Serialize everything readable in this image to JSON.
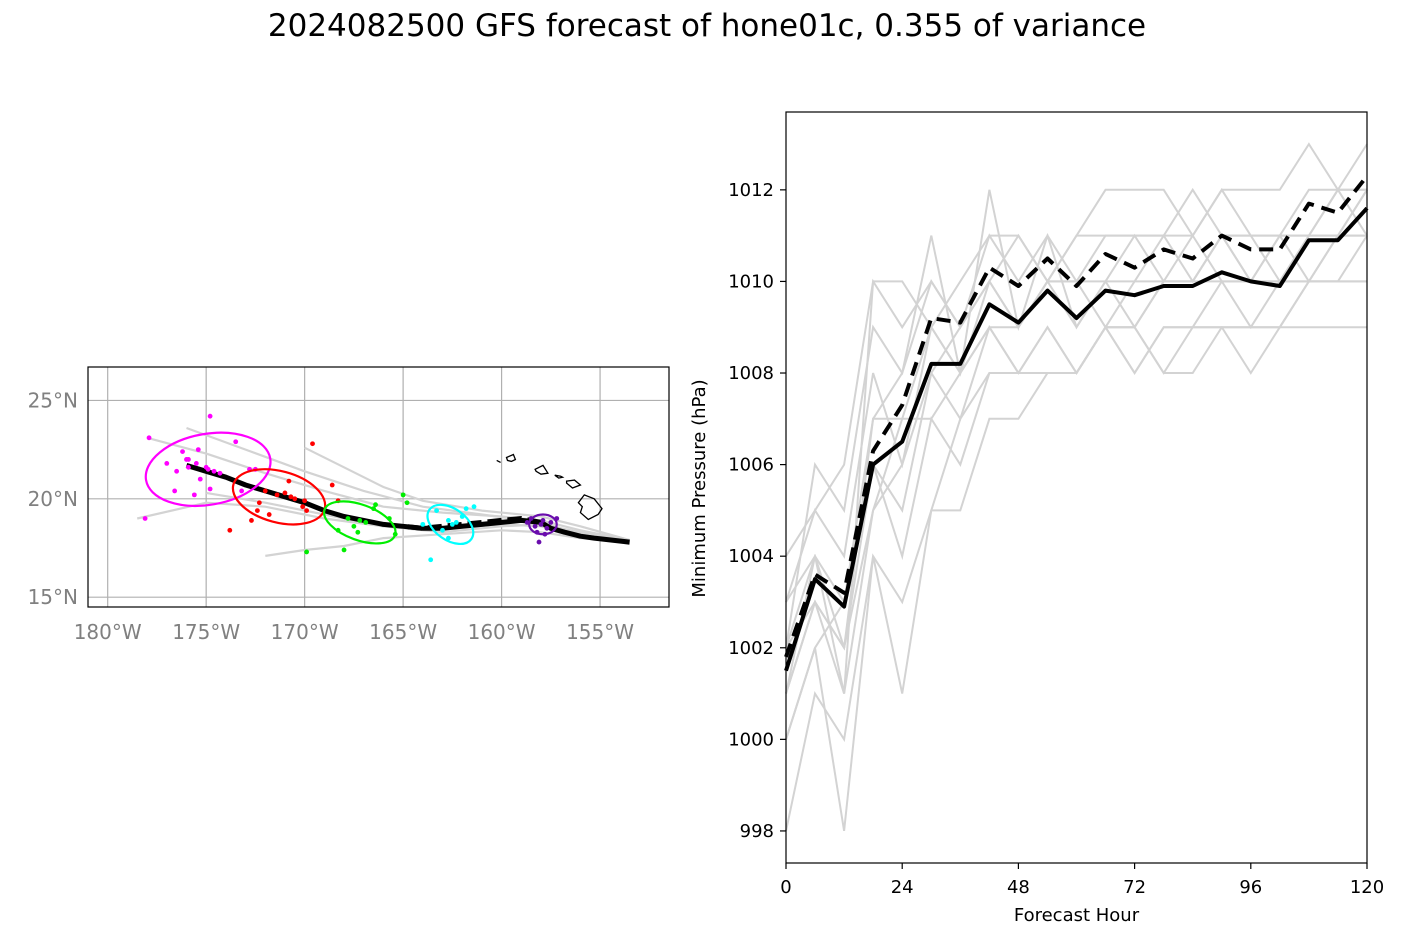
{
  "title": "2024082500 GFS forecast of hone01c, 0.355 of variance",
  "colors": {
    "ensemble": "#d3d3d3",
    "mean": "#000000",
    "t24": "#ff00ff",
    "t48": "#ff0000",
    "t72": "#00ee00",
    "t96": "#00ffff",
    "t120": "#6a0dad"
  },
  "chart_data": [
    {
      "type": "scatter",
      "name": "track-map",
      "xlim": [
        -181,
        -151.5
      ],
      "ylim": [
        14.5,
        26.7
      ],
      "xticks": [
        -180,
        -175,
        -170,
        -165,
        -160,
        -155
      ],
      "xtick_labels": [
        "180°W",
        "175°W",
        "170°W",
        "165°W",
        "160°W",
        "155°W"
      ],
      "yticks": [
        15,
        20,
        25
      ],
      "ytick_labels": [
        "15°N",
        "20°N",
        "25°N"
      ],
      "grid": true,
      "mean_track": {
        "lon": [
          -153.5,
          -154.4,
          -155.3,
          -156.0,
          -156.8,
          -157.5,
          -158.0,
          -159.0,
          -160.0,
          -161.0,
          -162.0,
          -163.0,
          -164.0,
          -165.0,
          -166.0,
          -167.0,
          -168.0,
          -169.0,
          -170.0,
          -171.0,
          -172.0,
          -173.0,
          -174.0,
          -175.0,
          -176.0
        ],
        "lat": [
          17.8,
          17.9,
          18.0,
          18.1,
          18.3,
          18.5,
          18.8,
          18.9,
          18.8,
          18.7,
          18.6,
          18.5,
          18.5,
          18.6,
          18.7,
          18.9,
          19.1,
          19.4,
          19.8,
          20.1,
          20.4,
          20.7,
          21.1,
          21.4,
          21.7
        ]
      },
      "dashed_track": {
        "lon": [
          -158.0,
          -159.0,
          -160.0,
          -161.0,
          -162.0,
          -163.0,
          -164.0,
          -165.0
        ],
        "lat": [
          18.8,
          19.0,
          18.9,
          18.8,
          18.7,
          18.6,
          18.5,
          18.6
        ]
      },
      "ensemble_tracks": [
        {
          "lon": [
            -153.5,
            -156,
            -158,
            -160,
            -163,
            -166,
            -169,
            -172,
            -175,
            -178.5
          ],
          "lat": [
            17.8,
            18.1,
            18.6,
            18.7,
            18.5,
            18.6,
            19.0,
            19.6,
            19.8,
            19.0
          ]
        },
        {
          "lon": [
            -153.5,
            -156,
            -158,
            -160,
            -163,
            -166,
            -169,
            -172,
            -175,
            -178
          ],
          "lat": [
            17.9,
            18.4,
            18.9,
            19.1,
            19.3,
            19.6,
            20.4,
            21.3,
            22.3,
            23.1
          ]
        },
        {
          "lon": [
            -153.5,
            -156,
            -158,
            -160,
            -163,
            -166,
            -168,
            -170,
            -172
          ],
          "lat": [
            17.8,
            18.0,
            18.3,
            18.4,
            18.2,
            18.0,
            17.6,
            17.4,
            17.1
          ]
        },
        {
          "lon": [
            -153.5,
            -156,
            -158,
            -161,
            -164,
            -167,
            -170,
            -173,
            -176
          ],
          "lat": [
            17.7,
            18.2,
            18.8,
            19.2,
            19.6,
            20.4,
            21.4,
            22.5,
            23.6
          ]
        },
        {
          "lon": [
            -153.5,
            -156,
            -158,
            -161,
            -164,
            -166,
            -168,
            -170
          ],
          "lat": [
            17.9,
            18.6,
            19.1,
            19.4,
            19.9,
            20.6,
            21.6,
            22.6
          ]
        },
        {
          "lon": [
            -153.5,
            -156,
            -158,
            -160,
            -163,
            -166,
            -169,
            -172,
            -175
          ],
          "lat": [
            17.9,
            18.3,
            18.7,
            18.6,
            18.3,
            18.6,
            19.2,
            19.8,
            20.3
          ]
        }
      ],
      "forecast_points": [
        {
          "hour": 24,
          "color_key": "t24",
          "lon": [
            -177.9,
            -176.2,
            -175.9,
            -175.5,
            -175.0,
            -174.9,
            -174.6,
            -174.3,
            -175.9,
            -176.5,
            -175.3,
            -174.8,
            -173.5,
            -172.8,
            -176.6,
            -177.0,
            -174.8,
            -175.4,
            -176.0,
            -175.6,
            -172.5,
            -173.2,
            -178.1
          ],
          "lat": [
            23.1,
            22.4,
            22.0,
            21.8,
            21.6,
            21.5,
            21.4,
            21.3,
            21.6,
            21.4,
            21.0,
            20.5,
            22.9,
            21.5,
            20.4,
            21.8,
            24.2,
            22.5,
            22.0,
            20.2,
            21.5,
            20.4,
            19.0
          ]
        },
        {
          "hour": 48,
          "color_key": "t48",
          "lon": [
            -171.0,
            -170.7,
            -170.5,
            -171.4,
            -172.0,
            -172.3,
            -171.8,
            -170.1,
            -169.9,
            -169.6,
            -168.6,
            -168.3,
            -172.7,
            -173.8,
            -170.0,
            -170.8,
            -172.4
          ],
          "lat": [
            20.3,
            20.1,
            20.0,
            20.2,
            20.4,
            19.8,
            19.2,
            19.6,
            19.4,
            22.8,
            20.7,
            19.9,
            18.9,
            18.4,
            19.9,
            20.9,
            19.4
          ]
        },
        {
          "hour": 72,
          "color_key": "t72",
          "lon": [
            -167.8,
            -167.2,
            -166.9,
            -167.5,
            -166.5,
            -165.7,
            -165.0,
            -164.8,
            -168.3,
            -168.0,
            -167.3,
            -169.9,
            -166.4,
            -165.4
          ],
          "lat": [
            19.0,
            18.9,
            18.8,
            18.6,
            19.5,
            19.0,
            20.2,
            19.8,
            18.4,
            17.4,
            18.3,
            17.3,
            19.7,
            18.2
          ]
        },
        {
          "hour": 96,
          "color_key": "t96",
          "lon": [
            -162.7,
            -162.5,
            -162.3,
            -162.0,
            -161.8,
            -163.0,
            -163.3,
            -161.4,
            -162.7,
            -164.0,
            -163.6
          ],
          "lat": [
            18.9,
            18.7,
            18.8,
            19.1,
            19.5,
            18.4,
            19.4,
            19.6,
            18.0,
            18.7,
            16.9
          ]
        },
        {
          "hour": 120,
          "color_key": "t120",
          "lon": [
            -158.0,
            -157.9,
            -157.7,
            -158.3,
            -158.5,
            -157.5,
            -158.2,
            -157.2,
            -158.7,
            -157.8,
            -158.1
          ],
          "lat": [
            18.7,
            18.9,
            18.5,
            18.6,
            19.0,
            18.8,
            18.3,
            19.0,
            18.8,
            18.2,
            17.8
          ]
        }
      ],
      "ellipses": [
        {
          "hour": 24,
          "color_key": "t24",
          "center_lon": -174.9,
          "center_lat": 21.5,
          "semi_major_deg": 3.2,
          "semi_minor_deg": 1.8,
          "angle_deg": -10
        },
        {
          "hour": 48,
          "color_key": "t48",
          "center_lon": -171.3,
          "center_lat": 20.1,
          "semi_major_deg": 2.4,
          "semi_minor_deg": 1.3,
          "angle_deg": 15
        },
        {
          "hour": 72,
          "color_key": "t72",
          "center_lon": -167.2,
          "center_lat": 18.8,
          "semi_major_deg": 1.9,
          "semi_minor_deg": 0.9,
          "angle_deg": 20
        },
        {
          "hour": 96,
          "color_key": "t96",
          "center_lon": -162.6,
          "center_lat": 18.7,
          "semi_major_deg": 1.3,
          "semi_minor_deg": 0.8,
          "angle_deg": 35
        },
        {
          "hour": 120,
          "color_key": "t120",
          "center_lon": -157.9,
          "center_lat": 18.7,
          "semi_major_deg": 0.7,
          "semi_minor_deg": 0.5,
          "angle_deg": 0
        }
      ],
      "islands": [
        {
          "lon": [
            -156.1,
            -155.8,
            -155.3,
            -154.9,
            -155.1,
            -155.6,
            -156.0,
            -155.9
          ],
          "lat": [
            19.8,
            20.2,
            20.0,
            19.5,
            19.2,
            18.95,
            19.3,
            19.6
          ]
        },
        {
          "lon": [
            -156.7,
            -156.3,
            -156.0,
            -156.4,
            -156.7
          ],
          "lat": [
            20.9,
            20.95,
            20.7,
            20.55,
            20.8
          ]
        },
        {
          "lon": [
            -157.3,
            -157.0,
            -156.9,
            -157.1
          ],
          "lat": [
            21.2,
            21.15,
            21.1,
            21.05
          ]
        },
        {
          "lon": [
            -158.3,
            -157.9,
            -157.65,
            -158.0,
            -158.25
          ],
          "lat": [
            21.5,
            21.7,
            21.3,
            21.25,
            21.4
          ]
        },
        {
          "lon": [
            -159.75,
            -159.4,
            -159.3,
            -159.5,
            -159.7
          ],
          "lat": [
            22.1,
            22.25,
            22.0,
            21.9,
            21.95
          ]
        },
        {
          "lon": [
            -160.25,
            -160.05
          ],
          "lat": [
            21.95,
            21.85
          ]
        }
      ]
    },
    {
      "type": "line",
      "name": "pressure",
      "xlabel": "Forecast Hour",
      "ylabel": "Minimum Pressure (hPa)",
      "xlim": [
        0,
        120
      ],
      "ylim": [
        997.3,
        1013.7
      ],
      "xticks": [
        0,
        24,
        48,
        72,
        96,
        120
      ],
      "yticks": [
        998,
        1000,
        1002,
        1004,
        1006,
        1008,
        1010,
        1012
      ],
      "x": [
        0,
        6,
        12,
        18,
        24,
        30,
        36,
        42,
        48,
        54,
        60,
        66,
        72,
        78,
        84,
        90,
        96,
        102,
        108,
        114,
        120
      ],
      "series": [
        {
          "role": "mean",
          "style": "solid",
          "values": [
            1001.5,
            1003.5,
            1002.9,
            1006.0,
            1006.5,
            1008.2,
            1008.2,
            1009.5,
            1009.1,
            1009.8,
            1009.2,
            1009.8,
            1009.7,
            1009.9,
            1009.9,
            1010.2,
            1010.0,
            1009.9,
            1010.9,
            1010.9,
            1011.6
          ]
        },
        {
          "role": "dashed",
          "style": "dashed",
          "values": [
            1001.8,
            1003.6,
            1003.2,
            1006.3,
            1007.3,
            1009.2,
            1009.1,
            1010.3,
            1009.9,
            1010.5,
            1009.9,
            1010.6,
            1010.3,
            1010.7,
            1010.5,
            1011.0,
            1010.7,
            1010.7,
            1011.7,
            1011.5,
            1012.3
          ]
        }
      ],
      "ensemble_series": [
        [
          1004,
          1005,
          1006,
          1010,
          1009,
          1010,
          1009,
          1010,
          1011,
          1010,
          1011,
          1012,
          1012,
          1012,
          1011,
          1012,
          1012,
          1012,
          1013,
          1012,
          1013
        ],
        [
          1002,
          1003,
          1001,
          1005,
          1006,
          1008,
          1009,
          1010,
          1009,
          1010,
          1010,
          1009,
          1010,
          1010,
          1011,
          1010,
          1010,
          1010,
          1011,
          1011,
          1012
        ],
        [
          998,
          1001,
          1000,
          1004,
          1001,
          1005,
          1005,
          1007,
          1007,
          1008,
          1008,
          1009,
          1009,
          1008,
          1008,
          1009,
          1009,
          1009,
          1010,
          1010,
          1011
        ],
        [
          1001,
          1003,
          1002,
          1007,
          1007,
          1009,
          1008,
          1009,
          1009,
          1010,
          1010,
          1010,
          1011,
          1010,
          1010,
          1011,
          1011,
          1011,
          1011,
          1012,
          1012
        ],
        [
          1000,
          1002,
          1003,
          1006,
          1005,
          1008,
          1007,
          1009,
          1008,
          1009,
          1008,
          1009,
          1008,
          1009,
          1009,
          1010,
          1009,
          1010,
          1010,
          1011,
          1011
        ],
        [
          1003,
          1004,
          1002,
          1006,
          1004,
          1007,
          1006,
          1008,
          1008,
          1008,
          1008,
          1009,
          1009,
          1010,
          1010,
          1010,
          1010,
          1010,
          1010,
          1010,
          1010
        ],
        [
          1002,
          1006,
          1005,
          1009,
          1008,
          1010,
          1009,
          1011,
          1010,
          1011,
          1009,
          1010,
          1010,
          1011,
          1010,
          1011,
          1010,
          1011,
          1010,
          1011,
          1011
        ],
        [
          1001,
          1004,
          1001,
          1010,
          1010,
          1009,
          1010,
          1011,
          1011,
          1010,
          1011,
          1011,
          1011,
          1011,
          1012,
          1011,
          1011,
          1010,
          1011,
          1011,
          1012
        ],
        [
          1000,
          1002,
          998,
          1004,
          1003,
          1005,
          1007,
          1008,
          1008,
          1009,
          1008,
          1009,
          1008,
          1009,
          1009,
          1009,
          1008,
          1009,
          1009,
          1009,
          1009
        ],
        [
          1003,
          1005,
          1004,
          1008,
          1006,
          1009,
          1008,
          1012,
          1009,
          1011,
          1010,
          1011,
          1011,
          1011,
          1011,
          1012,
          1011,
          1011,
          1012,
          1012,
          1012
        ],
        [
          1002,
          1004,
          1003,
          1007,
          1008,
          1011,
          1008,
          1010,
          1009,
          1010,
          1009,
          1010,
          1009,
          1010,
          1010,
          1011,
          1010,
          1011,
          1011,
          1012,
          1011
        ],
        [
          1001,
          1003,
          1002,
          1005,
          1007,
          1007,
          1008,
          1009,
          1008,
          1008,
          1008,
          1009,
          1009,
          1008,
          1009,
          1009,
          1009,
          1009,
          1010,
          1010,
          1010
        ]
      ]
    }
  ]
}
